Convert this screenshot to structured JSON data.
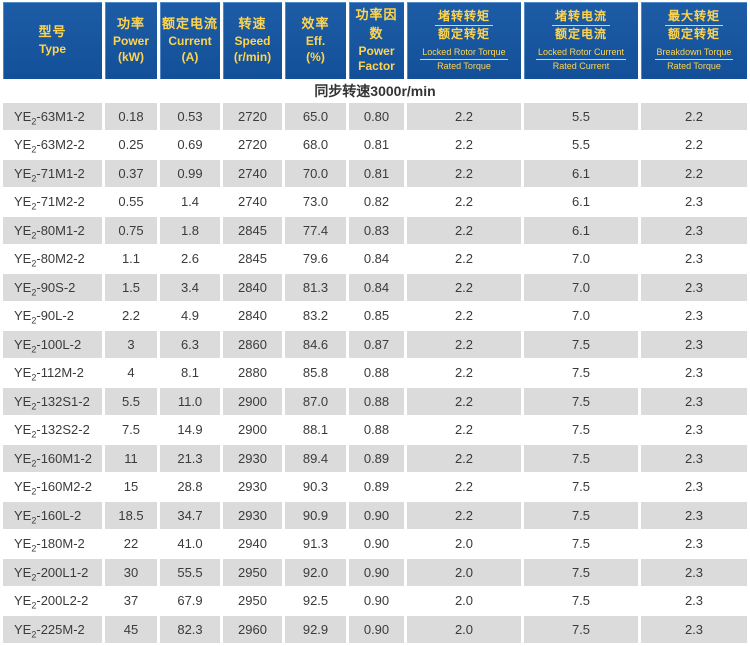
{
  "colors": {
    "header_bg": "#14509a",
    "header_text": "#ffd54f",
    "row_alt_bg": "#dbdbdb",
    "row_bg": "#ffffff",
    "body_text": "#3b3b3b"
  },
  "table": {
    "columns": [
      {
        "lines": [
          "型号",
          "Type"
        ]
      },
      {
        "lines": [
          "功率",
          "Power",
          "(kW)"
        ]
      },
      {
        "lines": [
          "额定电流",
          "Current",
          "(A)"
        ]
      },
      {
        "lines": [
          "转速",
          "Speed",
          "(r/min)"
        ]
      },
      {
        "lines": [
          "效率",
          "Eff.",
          "(%)"
        ]
      },
      {
        "lines": [
          "功率因数",
          "Power",
          "Factor"
        ]
      },
      {
        "fraction": {
          "zh_top": "堵转转矩",
          "zh_bottom": "额定转矩",
          "en_top": "Locked Rotor Torque",
          "en_bottom": "Rated Torque"
        }
      },
      {
        "fraction": {
          "zh_top": "堵转电流",
          "zh_bottom": "额定电流",
          "en_top": "Locked Rotor Current",
          "en_bottom": "Rated Current"
        }
      },
      {
        "fraction": {
          "zh_top": "最大转矩",
          "zh_bottom": "额定转矩",
          "en_top": "Breakdown Torque",
          "en_bottom": "Rated Torque"
        }
      }
    ],
    "section_header": "同步转速3000r/min",
    "rows": [
      {
        "model": "YE2-63M1-2",
        "power_kw": "0.18",
        "current_a": "0.53",
        "speed_rpm": "2720",
        "eff_pct": "65.0",
        "power_factor": "0.80",
        "lrt_ratio": "2.2",
        "lrc_ratio": "5.5",
        "bt_ratio": "2.2"
      },
      {
        "model": "YE2-63M2-2",
        "power_kw": "0.25",
        "current_a": "0.69",
        "speed_rpm": "2720",
        "eff_pct": "68.0",
        "power_factor": "0.81",
        "lrt_ratio": "2.2",
        "lrc_ratio": "5.5",
        "bt_ratio": "2.2"
      },
      {
        "model": "YE2-71M1-2",
        "power_kw": "0.37",
        "current_a": "0.99",
        "speed_rpm": "2740",
        "eff_pct": "70.0",
        "power_factor": "0.81",
        "lrt_ratio": "2.2",
        "lrc_ratio": "6.1",
        "bt_ratio": "2.2"
      },
      {
        "model": "YE2-71M2-2",
        "power_kw": "0.55",
        "current_a": "1.4",
        "speed_rpm": "2740",
        "eff_pct": "73.0",
        "power_factor": "0.82",
        "lrt_ratio": "2.2",
        "lrc_ratio": "6.1",
        "bt_ratio": "2.3"
      },
      {
        "model": "YE2-80M1-2",
        "power_kw": "0.75",
        "current_a": "1.8",
        "speed_rpm": "2845",
        "eff_pct": "77.4",
        "power_factor": "0.83",
        "lrt_ratio": "2.2",
        "lrc_ratio": "6.1",
        "bt_ratio": "2.3"
      },
      {
        "model": "YE2-80M2-2",
        "power_kw": "1.1",
        "current_a": "2.6",
        "speed_rpm": "2845",
        "eff_pct": "79.6",
        "power_factor": "0.84",
        "lrt_ratio": "2.2",
        "lrc_ratio": "7.0",
        "bt_ratio": "2.3"
      },
      {
        "model": "YE2-90S-2",
        "power_kw": "1.5",
        "current_a": "3.4",
        "speed_rpm": "2840",
        "eff_pct": "81.3",
        "power_factor": "0.84",
        "lrt_ratio": "2.2",
        "lrc_ratio": "7.0",
        "bt_ratio": "2.3"
      },
      {
        "model": "YE2-90L-2",
        "power_kw": "2.2",
        "current_a": "4.9",
        "speed_rpm": "2840",
        "eff_pct": "83.2",
        "power_factor": "0.85",
        "lrt_ratio": "2.2",
        "lrc_ratio": "7.0",
        "bt_ratio": "2.3"
      },
      {
        "model": "YE2-100L-2",
        "power_kw": "3",
        "current_a": "6.3",
        "speed_rpm": "2860",
        "eff_pct": "84.6",
        "power_factor": "0.87",
        "lrt_ratio": "2.2",
        "lrc_ratio": "7.5",
        "bt_ratio": "2.3"
      },
      {
        "model": "YE2-112M-2",
        "power_kw": "4",
        "current_a": "8.1",
        "speed_rpm": "2880",
        "eff_pct": "85.8",
        "power_factor": "0.88",
        "lrt_ratio": "2.2",
        "lrc_ratio": "7.5",
        "bt_ratio": "2.3"
      },
      {
        "model": "YE2-132S1-2",
        "power_kw": "5.5",
        "current_a": "11.0",
        "speed_rpm": "2900",
        "eff_pct": "87.0",
        "power_factor": "0.88",
        "lrt_ratio": "2.2",
        "lrc_ratio": "7.5",
        "bt_ratio": "2.3"
      },
      {
        "model": "YE2-132S2-2",
        "power_kw": "7.5",
        "current_a": "14.9",
        "speed_rpm": "2900",
        "eff_pct": "88.1",
        "power_factor": "0.88",
        "lrt_ratio": "2.2",
        "lrc_ratio": "7.5",
        "bt_ratio": "2.3"
      },
      {
        "model": "YE2-160M1-2",
        "power_kw": "11",
        "current_a": "21.3",
        "speed_rpm": "2930",
        "eff_pct": "89.4",
        "power_factor": "0.89",
        "lrt_ratio": "2.2",
        "lrc_ratio": "7.5",
        "bt_ratio": "2.3"
      },
      {
        "model": "YE2-160M2-2",
        "power_kw": "15",
        "current_a": "28.8",
        "speed_rpm": "2930",
        "eff_pct": "90.3",
        "power_factor": "0.89",
        "lrt_ratio": "2.2",
        "lrc_ratio": "7.5",
        "bt_ratio": "2.3"
      },
      {
        "model": "YE2-160L-2",
        "power_kw": "18.5",
        "current_a": "34.7",
        "speed_rpm": "2930",
        "eff_pct": "90.9",
        "power_factor": "0.90",
        "lrt_ratio": "2.2",
        "lrc_ratio": "7.5",
        "bt_ratio": "2.3"
      },
      {
        "model": "YE2-180M-2",
        "power_kw": "22",
        "current_a": "41.0",
        "speed_rpm": "2940",
        "eff_pct": "91.3",
        "power_factor": "0.90",
        "lrt_ratio": "2.0",
        "lrc_ratio": "7.5",
        "bt_ratio": "2.3"
      },
      {
        "model": "YE2-200L1-2",
        "power_kw": "30",
        "current_a": "55.5",
        "speed_rpm": "2950",
        "eff_pct": "92.0",
        "power_factor": "0.90",
        "lrt_ratio": "2.0",
        "lrc_ratio": "7.5",
        "bt_ratio": "2.3"
      },
      {
        "model": "YE2-200L2-2",
        "power_kw": "37",
        "current_a": "67.9",
        "speed_rpm": "2950",
        "eff_pct": "92.5",
        "power_factor": "0.90",
        "lrt_ratio": "2.0",
        "lrc_ratio": "7.5",
        "bt_ratio": "2.3"
      },
      {
        "model": "YE2-225M-2",
        "power_kw": "45",
        "current_a": "82.3",
        "speed_rpm": "2960",
        "eff_pct": "92.9",
        "power_factor": "0.90",
        "lrt_ratio": "2.0",
        "lrc_ratio": "7.5",
        "bt_ratio": "2.3"
      }
    ]
  }
}
